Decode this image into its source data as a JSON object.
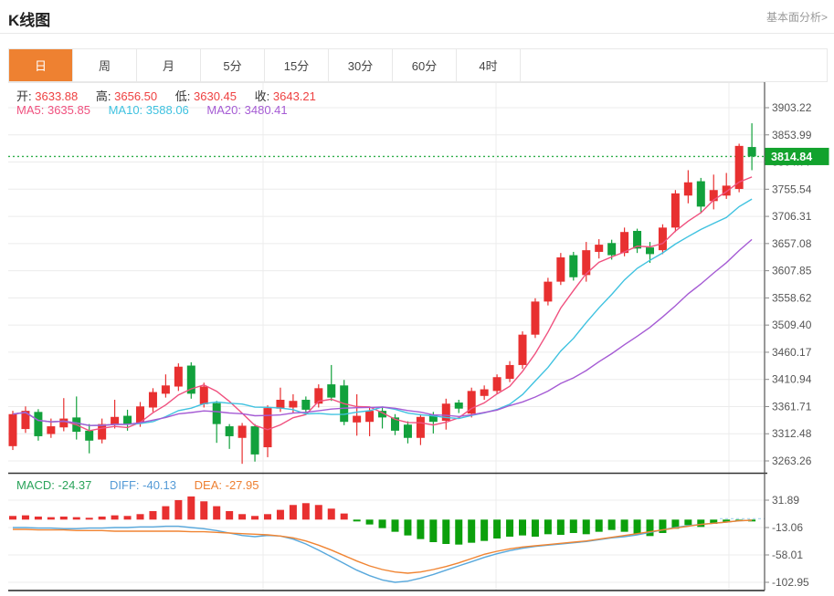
{
  "header": {
    "title": "K线图",
    "analysis_link": "基本面分析>"
  },
  "tabs": [
    {
      "label": "日",
      "active": true
    },
    {
      "label": "周",
      "active": false
    },
    {
      "label": "月",
      "active": false
    },
    {
      "label": "5分",
      "active": false
    },
    {
      "label": "15分",
      "active": false
    },
    {
      "label": "30分",
      "active": false
    },
    {
      "label": "60分",
      "active": false
    },
    {
      "label": "4时",
      "active": false
    }
  ],
  "quote_legend": {
    "items": [
      {
        "label": "开:",
        "value": "3633.88"
      },
      {
        "label": "高:",
        "value": "3656.50"
      },
      {
        "label": "低:",
        "value": "3630.45"
      },
      {
        "label": "收:",
        "value": "3643.21"
      }
    ]
  },
  "ma_legend": {
    "items": [
      {
        "label": "MA5:",
        "value": "3635.85",
        "color": "#f0517f"
      },
      {
        "label": "MA10:",
        "value": "3588.06",
        "color": "#3fc2e0"
      },
      {
        "label": "MA20:",
        "value": "3480.41",
        "color": "#a55bd4"
      }
    ]
  },
  "macd_legend": {
    "items": [
      {
        "label": "MACD:",
        "value": "-24.37",
        "color": "#2aa35a"
      },
      {
        "label": "DIFF:",
        "value": "-40.13",
        "color": "#549ad6"
      },
      {
        "label": "DEA:",
        "value": "-27.95",
        "color": "#ee8032"
      }
    ]
  },
  "price_marker": {
    "value": "3814.84"
  },
  "colors": {
    "up": "#e83030",
    "down": "#12a13c",
    "hist_up": "#e83030",
    "hist_down": "#0ca00c",
    "ma5": "#f0517f",
    "ma10": "#3fc2e0",
    "ma20": "#a55bd4",
    "diff_line": "#58a8dc",
    "dea_line": "#f08432",
    "current_price_line": "#2fae4a",
    "price_box": "#12a22d",
    "tab_accent": "#ee8131",
    "grid": "#ececec",
    "axis": "#444444"
  },
  "chart_data": [
    {
      "type": "candlestick",
      "title": "K线图 (日K)",
      "legend_position": "top-left",
      "grid": true,
      "y_tick_labels": [
        "3903.22",
        "3853.99",
        "3804.77",
        "3755.54",
        "3706.31",
        "3657.08",
        "3607.85",
        "3558.62",
        "3509.40",
        "3460.17",
        "3410.94",
        "3361.71",
        "3312.48",
        "3263.26"
      ],
      "ylim": [
        3242,
        3953
      ],
      "current_price": 3814.84,
      "ma_periods": [
        5,
        10,
        20
      ],
      "candles_ohlc_order": [
        "open",
        "high",
        "low",
        "close"
      ],
      "candles": [
        [
          3290,
          3354,
          3283,
          3348
        ],
        [
          3321,
          3362,
          3314,
          3354
        ],
        [
          3352,
          3357,
          3300,
          3308
        ],
        [
          3312,
          3340,
          3305,
          3326
        ],
        [
          3324,
          3377,
          3317,
          3340
        ],
        [
          3342,
          3380,
          3302,
          3316
        ],
        [
          3318,
          3330,
          3277,
          3300
        ],
        [
          3302,
          3340,
          3295,
          3330
        ],
        [
          3330,
          3374,
          3322,
          3343
        ],
        [
          3345,
          3356,
          3318,
          3330
        ],
        [
          3332,
          3370,
          3325,
          3362
        ],
        [
          3360,
          3395,
          3352,
          3388
        ],
        [
          3385,
          3420,
          3378,
          3400
        ],
        [
          3398,
          3440,
          3390,
          3434
        ],
        [
          3436,
          3442,
          3376,
          3385
        ],
        [
          3366,
          3405,
          3360,
          3398
        ],
        [
          3368,
          3372,
          3296,
          3330
        ],
        [
          3326,
          3330,
          3285,
          3308
        ],
        [
          3305,
          3332,
          3258,
          3327
        ],
        [
          3326,
          3330,
          3262,
          3275
        ],
        [
          3288,
          3364,
          3270,
          3359
        ],
        [
          3358,
          3396,
          3352,
          3374
        ],
        [
          3360,
          3384,
          3350,
          3372
        ],
        [
          3374,
          3380,
          3348,
          3356
        ],
        [
          3367,
          3402,
          3360,
          3395
        ],
        [
          3402,
          3437,
          3372,
          3378
        ],
        [
          3400,
          3410,
          3328,
          3334
        ],
        [
          3333,
          3384,
          3309,
          3345
        ],
        [
          3334,
          3360,
          3308,
          3354
        ],
        [
          3354,
          3360,
          3322,
          3342
        ],
        [
          3342,
          3348,
          3310,
          3318
        ],
        [
          3329,
          3335,
          3295,
          3305
        ],
        [
          3305,
          3348,
          3292,
          3343
        ],
        [
          3347,
          3352,
          3313,
          3334
        ],
        [
          3336,
          3376,
          3320,
          3367
        ],
        [
          3369,
          3374,
          3350,
          3358
        ],
        [
          3349,
          3396,
          3342,
          3390
        ],
        [
          3381,
          3400,
          3374,
          3393
        ],
        [
          3390,
          3420,
          3384,
          3415
        ],
        [
          3412,
          3444,
          3406,
          3437
        ],
        [
          3437,
          3498,
          3430,
          3492
        ],
        [
          3492,
          3558,
          3486,
          3552
        ],
        [
          3552,
          3595,
          3545,
          3588
        ],
        [
          3588,
          3640,
          3582,
          3632
        ],
        [
          3636,
          3642,
          3590,
          3596
        ],
        [
          3600,
          3660,
          3588,
          3645
        ],
        [
          3642,
          3665,
          3630,
          3655
        ],
        [
          3658,
          3664,
          3628,
          3636
        ],
        [
          3640,
          3686,
          3634,
          3678
        ],
        [
          3680,
          3684,
          3640,
          3648
        ],
        [
          3650,
          3660,
          3622,
          3638
        ],
        [
          3645,
          3692,
          3638,
          3686
        ],
        [
          3686,
          3754,
          3678,
          3748
        ],
        [
          3744,
          3790,
          3730,
          3768
        ],
        [
          3770,
          3776,
          3712,
          3724
        ],
        [
          3734,
          3782,
          3719,
          3754
        ],
        [
          3744,
          3785,
          3738,
          3762
        ],
        [
          3756,
          3838,
          3750,
          3834
        ],
        [
          3832,
          3875,
          3790,
          3814.84
        ]
      ]
    },
    {
      "type": "bar",
      "name": "MACD",
      "grid": true,
      "y_tick_labels": [
        "31.89",
        "-13.06",
        "-58.01",
        "-102.95"
      ],
      "histogram": [
        6,
        7,
        5,
        4,
        5,
        4,
        3,
        5,
        7,
        6,
        9,
        14,
        22,
        32,
        38,
        30,
        22,
        14,
        9,
        6,
        9,
        16,
        24,
        27,
        24,
        18,
        10,
        -3,
        -8,
        -14,
        -20,
        -26,
        -32,
        -37,
        -40,
        -41,
        -38,
        -35,
        -31,
        -28,
        -26,
        -28,
        -24,
        -25,
        -22,
        -24,
        -20,
        -17,
        -20,
        -24,
        -27,
        -22,
        -15,
        -9,
        -12,
        -7,
        -4,
        -2,
        -3
      ],
      "series": [
        {
          "name": "DIFF",
          "values": [
            -13,
            -13,
            -14,
            -14,
            -15,
            -15,
            -14,
            -14,
            -13,
            -13,
            -12,
            -12,
            -11,
            -11,
            -13,
            -15,
            -18,
            -22,
            -26,
            -28,
            -26,
            -27,
            -32,
            -40,
            -50,
            -61,
            -72,
            -83,
            -92,
            -99,
            -103,
            -101,
            -96,
            -90,
            -83,
            -76,
            -69,
            -62,
            -56,
            -51,
            -47,
            -44,
            -42,
            -40,
            -38,
            -36,
            -33,
            -30,
            -28,
            -25,
            -21,
            -17,
            -13,
            -10,
            -8,
            -6,
            -4,
            -2,
            -1
          ]
        },
        {
          "name": "DEA",
          "values": [
            -16,
            -16,
            -17,
            -17,
            -17,
            -18,
            -18,
            -18,
            -19,
            -19,
            -19,
            -19,
            -19,
            -19,
            -20,
            -20,
            -21,
            -22,
            -23,
            -24,
            -25,
            -27,
            -30,
            -35,
            -42,
            -50,
            -59,
            -68,
            -76,
            -82,
            -86,
            -88,
            -86,
            -82,
            -77,
            -71,
            -64,
            -57,
            -52,
            -48,
            -45,
            -43,
            -41,
            -39,
            -37,
            -35,
            -32,
            -29,
            -26,
            -23,
            -20,
            -17,
            -14,
            -11,
            -8,
            -6,
            -4,
            -2,
            -1
          ]
        }
      ]
    }
  ]
}
